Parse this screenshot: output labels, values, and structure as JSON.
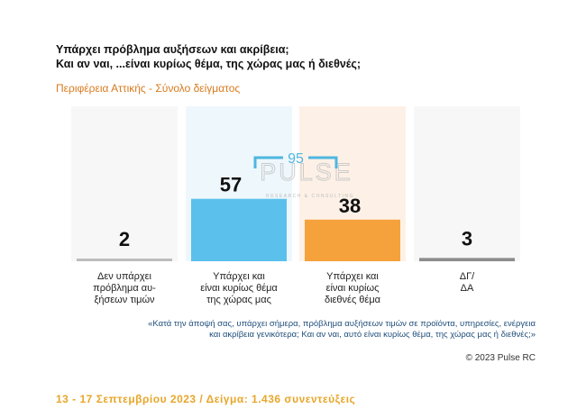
{
  "chart_data": {
    "type": "bar",
    "title_line1": "Υπάρχει πρόβλημα αυξήσεων και ακρίβεια;",
    "title_line2": "Και αν ναι, ...είναι κυρίως θέμα, της χώρας μας ή διεθνές;",
    "subtitle": "Περιφέρεια Αττικής - Σύνολο δείγματος",
    "categories": [
      "Δεν υπάρχει\nπρόβλημα αυ-\nξήσεων τιμών",
      "Υπάρχει και\nείναι κυρίως θέμα\nτης  χώρας μας",
      "Υπάρχει και\nείναι κυρίως\nδιεθνές θέμα",
      "ΔΓ/\nΔΑ"
    ],
    "values": [
      2,
      57,
      38,
      3
    ],
    "colors": [
      "#bdbdbd",
      "#5bc0eb",
      "#f5a23c",
      "#8c8c8c"
    ],
    "background_colors": [
      "#f7f7f7",
      "#eef7fc",
      "#fdf1e7",
      "#f7f7f7"
    ],
    "bracket": {
      "label": "95",
      "spans_categories": [
        1,
        2
      ],
      "color": "#4fb6e0"
    },
    "ylim": [
      0,
      100
    ],
    "watermark": {
      "brand": "PULSE",
      "tagline": "RESEARCH & CONSULTING"
    }
  },
  "question_note": "«Κατά την άποψή σας, υπάρχει σήμερα, πρόβλημα αυξήσεων τιμών σε προϊόντα, υπηρεσίες, ενέργεια και ακρίβεια γενικότερα; Και αν ναι, αυτό είναι κυρίως θέμα, της χώρας μας ή διεθνές;»",
  "copyright": "© 2023 Pulse RC",
  "footer": "13 - 17  Σεπτεμβρίου  2023  /  Δείγμα:  1.436 συνεντεύξεις"
}
